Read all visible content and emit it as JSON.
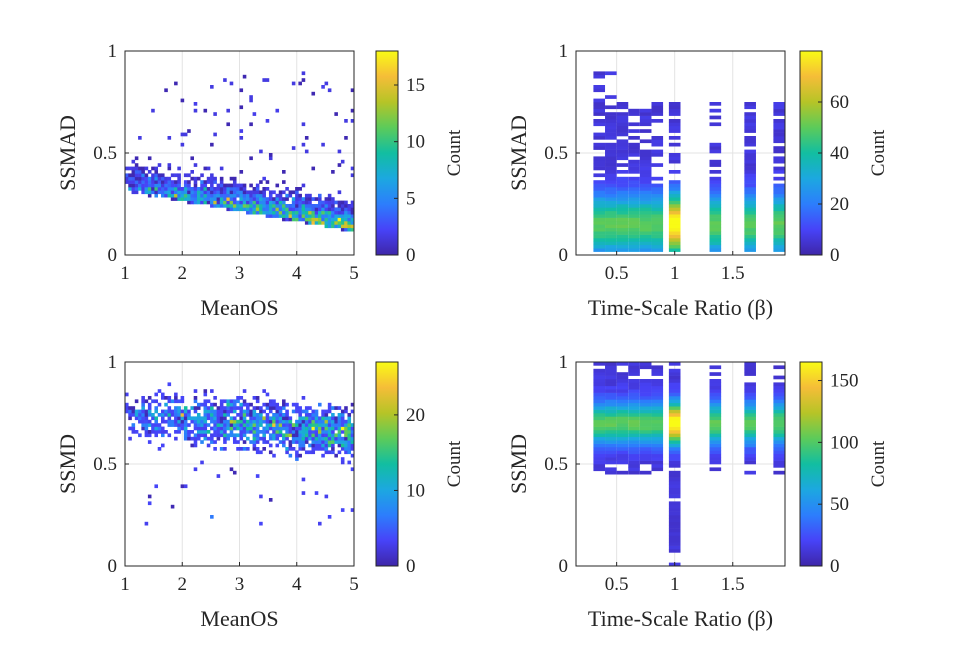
{
  "colormap": [
    "#3e26a8",
    "#4743f8",
    "#2c7efc",
    "#1ca8e0",
    "#12bea1",
    "#5ccb5a",
    "#b6c427",
    "#f5bd38",
    "#f9fb15"
  ],
  "chart_data": [
    {
      "type": "heatmap",
      "title": "",
      "xlabel": "MeanOS",
      "ylabel": "SSMAD",
      "xlim": [
        1,
        5
      ],
      "ylim": [
        0,
        1
      ],
      "xticks": [
        1,
        2,
        3,
        4,
        5
      ],
      "yticks": [
        0,
        0.5,
        1
      ],
      "grid": true,
      "colorbar": {
        "label": "Count",
        "range": [
          0,
          18
        ],
        "ticks": [
          0,
          5,
          10,
          15
        ]
      },
      "hotspot": {
        "x": 4.3,
        "y": 0.1,
        "peak_count": 18
      },
      "density_note": "2D histogram of SSMAD vs MeanOS; most counts between SSMAD 0.05-0.35"
    },
    {
      "type": "heatmap",
      "title": "",
      "xlabel": "Time-Scale Ratio (β)",
      "ylabel": "SSMAD",
      "xlim": [
        0.15,
        1.95
      ],
      "ylim": [
        0,
        1
      ],
      "xticks": [
        0.5,
        1,
        1.5
      ],
      "yticks": [
        0,
        0.5,
        1
      ],
      "grid": true,
      "colorbar": {
        "label": "Count",
        "range": [
          0,
          80
        ],
        "ticks": [
          0,
          20,
          40,
          60
        ]
      },
      "beta_columns": [
        0.35,
        0.45,
        0.55,
        0.65,
        0.75,
        0.85,
        1.0,
        1.35,
        1.65,
        1.9
      ],
      "hotspot": {
        "x": 1.0,
        "y": 0.1,
        "peak_count": 80
      }
    },
    {
      "type": "heatmap",
      "title": "",
      "xlabel": "MeanOS",
      "ylabel": "SSMD",
      "xlim": [
        1,
        5
      ],
      "ylim": [
        0,
        1
      ],
      "xticks": [
        1,
        2,
        3,
        4,
        5
      ],
      "yticks": [
        0,
        0.5,
        1
      ],
      "grid": true,
      "colorbar": {
        "label": "Count",
        "range": [
          0,
          27
        ],
        "ticks": [
          0,
          10,
          20
        ]
      },
      "hotspot": {
        "x": 4.5,
        "y": 0.67,
        "peak_count": 27
      }
    },
    {
      "type": "heatmap",
      "title": "",
      "xlabel": "Time-Scale Ratio (β)",
      "ylabel": "SSMD",
      "xlim": [
        0.15,
        1.95
      ],
      "ylim": [
        0,
        1
      ],
      "xticks": [
        0.5,
        1,
        1.5
      ],
      "yticks": [
        0,
        0.5,
        1
      ],
      "grid": true,
      "colorbar": {
        "label": "Count",
        "range": [
          0,
          165
        ],
        "ticks": [
          0,
          50,
          100,
          150
        ]
      },
      "beta_columns": [
        0.35,
        0.45,
        0.55,
        0.65,
        0.75,
        0.85,
        1.0,
        1.35,
        1.65,
        1.9
      ],
      "hotspot": {
        "x": 1.0,
        "y": 0.67,
        "peak_count": 165
      }
    }
  ]
}
